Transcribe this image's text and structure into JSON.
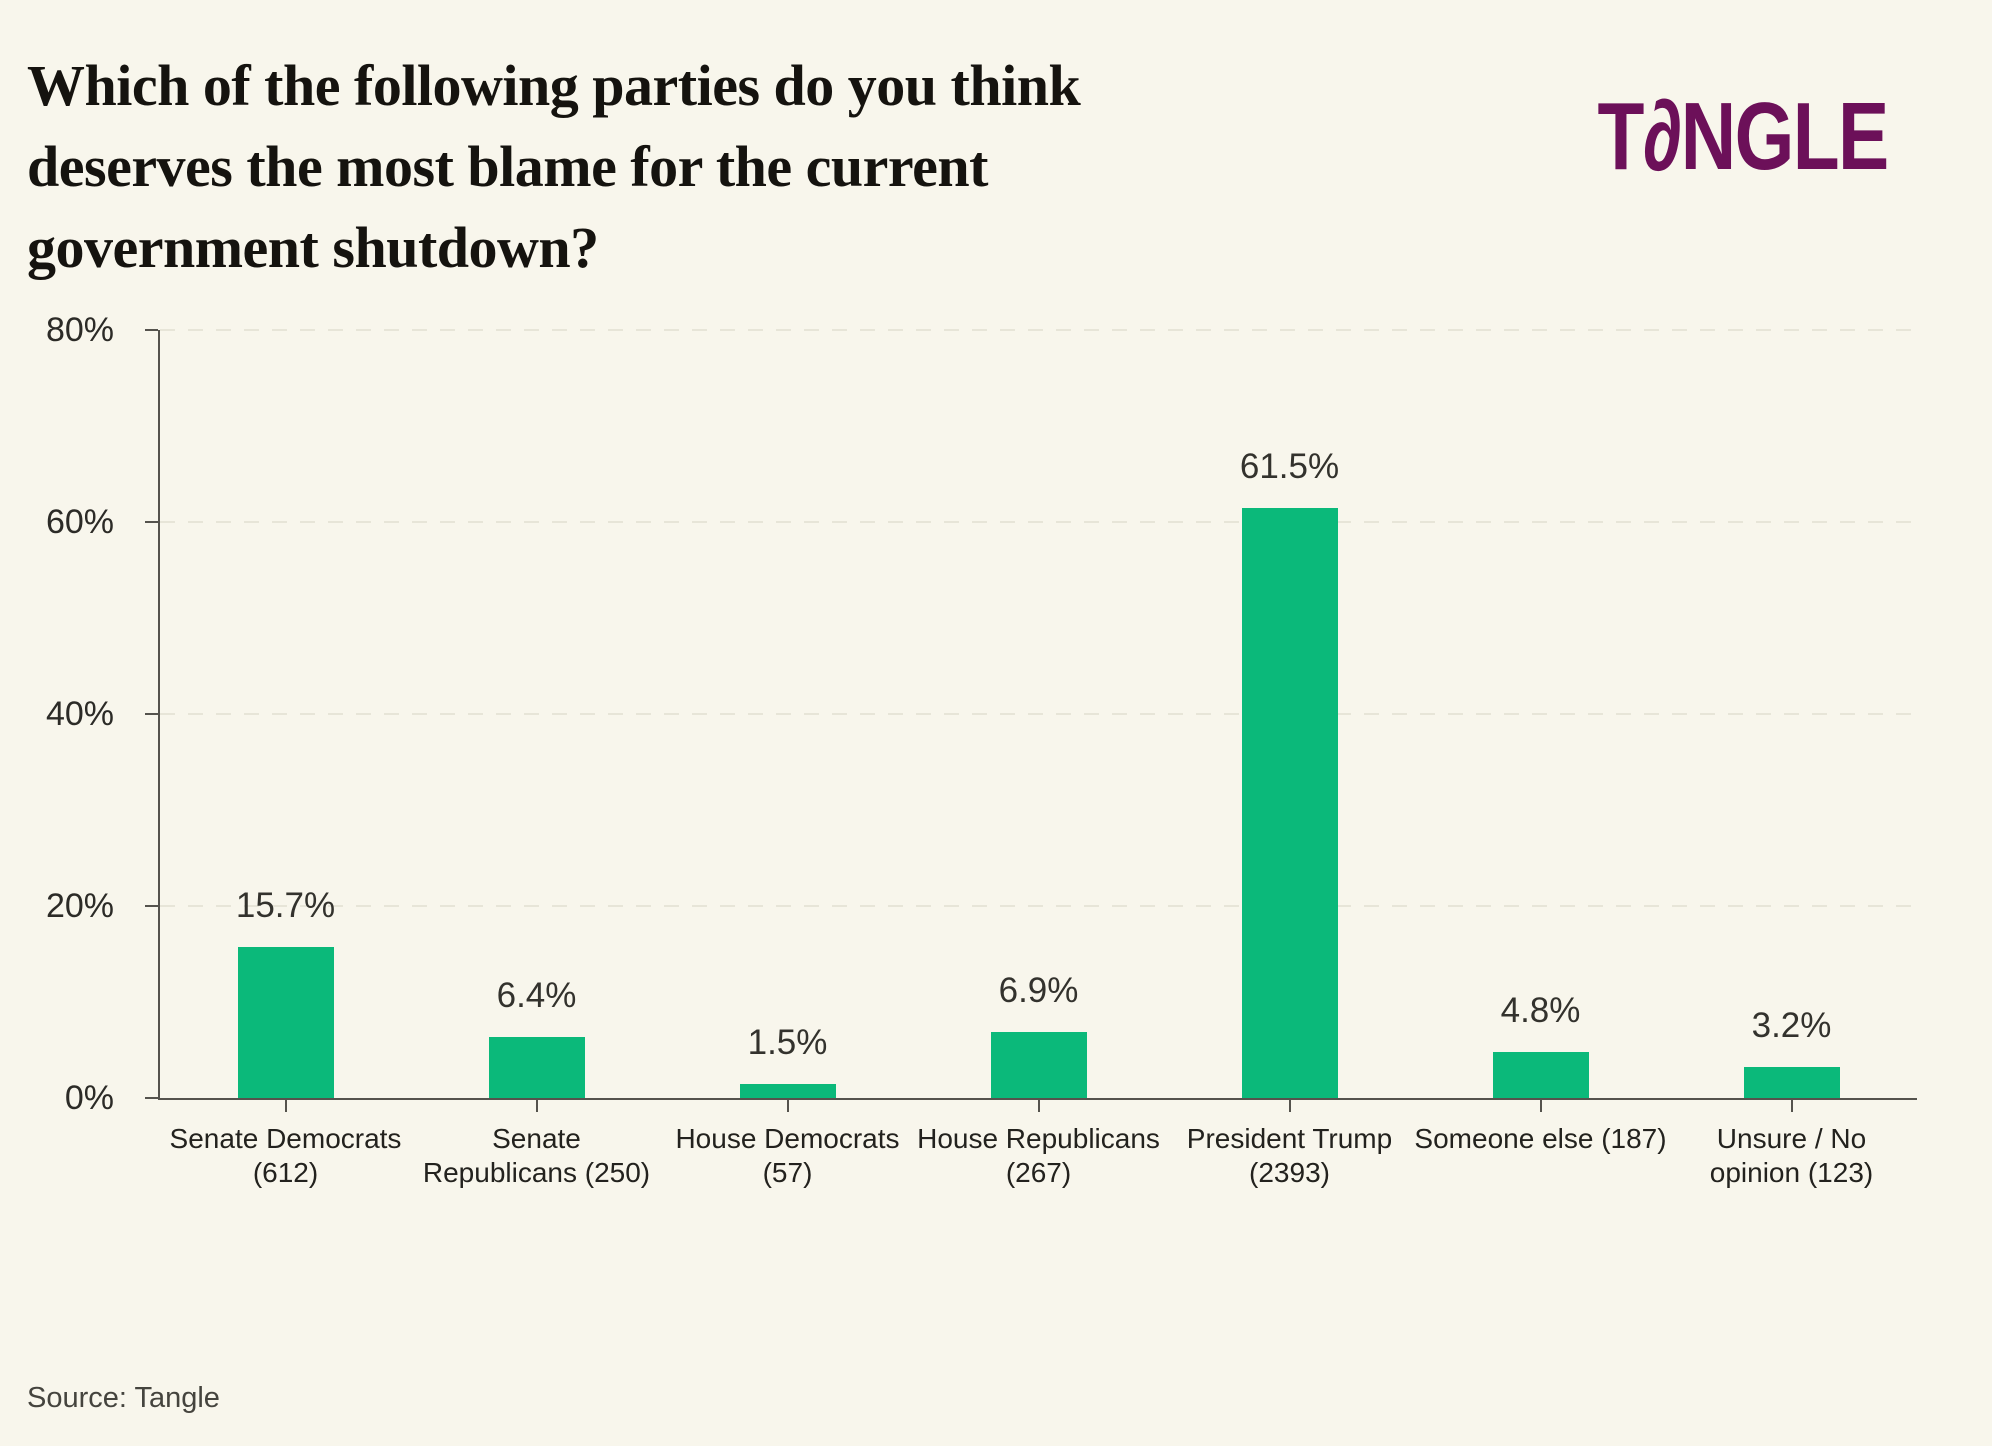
{
  "title_lines": [
    "Which of the following parties do you think",
    "deserves the most blame for the current",
    "government shutdown?"
  ],
  "logo": {
    "pre": "T",
    "a_glyph": "∂",
    "post": "NGLE",
    "brand_color": "#6c1059"
  },
  "source": "Source: Tangle",
  "colors": {
    "background": "#f8f6ec",
    "bar": "#0bb97a",
    "axis": "#55534d",
    "gridline": "#e7e5d8",
    "title_text": "#15130f",
    "label_text": "#23221e"
  },
  "chart_data": {
    "type": "bar",
    "title": "Which of the following parties do you think deserves the most blame for the current government shutdown?",
    "categories": [
      "Senate Democrats\n(612)",
      "Senate\nRepublicans (250)",
      "House Democrats\n(57)",
      "House Republicans\n(267)",
      "President Trump\n(2393)",
      "Someone else (187)",
      "Unsure / No\nopinion (123)"
    ],
    "values": [
      15.7,
      6.4,
      1.5,
      6.9,
      61.5,
      4.8,
      3.2
    ],
    "value_labels": [
      "15.7%",
      "6.4%",
      "1.5%",
      "6.9%",
      "61.5%",
      "4.8%",
      "3.2%"
    ],
    "counts": [
      612,
      250,
      57,
      267,
      2393,
      187,
      123
    ],
    "xlabel": "",
    "ylabel": "",
    "ylim": [
      0,
      80
    ],
    "yticks": [
      "0%",
      "20%",
      "40%",
      "60%",
      "80%"
    ],
    "grid": "horizontal-dashed",
    "legend": "none"
  }
}
